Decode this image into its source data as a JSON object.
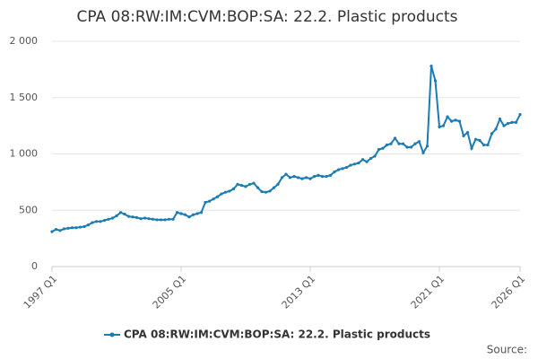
{
  "chart_data": {
    "type": "line",
    "title": "CPA 08:RW:IM:CVM:BOP:SA: 22.2. Plastic products",
    "source": "Source:",
    "categories": [
      "1997 Q1",
      null,
      null,
      null,
      null,
      null,
      null,
      null,
      null,
      null,
      null,
      null,
      null,
      null,
      null,
      null,
      null,
      null,
      null,
      null,
      null,
      null,
      null,
      null,
      null,
      null,
      null,
      null,
      null,
      null,
      null,
      null,
      "2005 Q1",
      null,
      null,
      null,
      null,
      null,
      null,
      null,
      null,
      null,
      null,
      null,
      null,
      null,
      null,
      null,
      null,
      null,
      null,
      null,
      null,
      null,
      null,
      null,
      null,
      null,
      null,
      null,
      null,
      null,
      null,
      null,
      "2013 Q1",
      null,
      null,
      null,
      null,
      null,
      null,
      null,
      null,
      null,
      null,
      null,
      null,
      null,
      null,
      null,
      null,
      null,
      null,
      null,
      null,
      null,
      null,
      null,
      null,
      null,
      null,
      null,
      null,
      null,
      null,
      null,
      "2021 Q1",
      null,
      null,
      null,
      null,
      null,
      null,
      null,
      null,
      null,
      null,
      null,
      null,
      null,
      null,
      null,
      null,
      null,
      null,
      null,
      "2026 Q1"
    ],
    "series": [
      {
        "name": "CPA 08:RW:IM:CVM:BOP:SA: 22.2. Plastic products",
        "color": "#1b7bb5",
        "values": [
          310,
          330,
          320,
          335,
          340,
          345,
          345,
          350,
          355,
          370,
          390,
          400,
          400,
          410,
          420,
          430,
          450,
          480,
          465,
          445,
          440,
          435,
          425,
          430,
          425,
          420,
          415,
          415,
          415,
          420,
          420,
          480,
          470,
          460,
          440,
          460,
          470,
          480,
          570,
          580,
          600,
          620,
          645,
          660,
          670,
          690,
          730,
          720,
          710,
          730,
          740,
          700,
          665,
          660,
          670,
          700,
          730,
          790,
          820,
          790,
          800,
          790,
          780,
          790,
          780,
          800,
          810,
          800,
          800,
          810,
          840,
          860,
          870,
          880,
          900,
          910,
          920,
          950,
          930,
          960,
          980,
          1040,
          1050,
          1080,
          1090,
          1140,
          1090,
          1090,
          1060,
          1060,
          1090,
          1110,
          1010,
          1070,
          1780,
          1650,
          1240,
          1250,
          1330,
          1290,
          1300,
          1290,
          1160,
          1190,
          1050,
          1130,
          1120,
          1080,
          1080,
          1180,
          1220,
          1310,
          1250,
          1270,
          1280,
          1280,
          1350
        ]
      }
    ],
    "ylim": [
      0,
      2000
    ],
    "yticks": [
      0,
      500,
      {
        "value": 1000,
        "label": "1 000"
      },
      {
        "value": 1500,
        "label": "1 500"
      },
      {
        "value": 2000,
        "label": "2 000"
      }
    ],
    "grid": true,
    "legend": "bottom"
  }
}
